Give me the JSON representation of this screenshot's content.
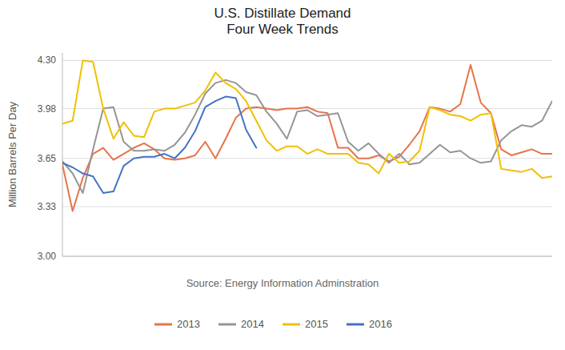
{
  "chart_data": {
    "type": "line",
    "title": "U.S. Distillate Demand\nFour Week Trends",
    "y_label": "Million Barrels Per Day",
    "annotations": [
      "Source: Energy Information Adminstration"
    ],
    "categories": [
      null,
      null,
      null,
      null,
      null,
      null,
      null,
      null,
      null,
      null,
      null,
      null,
      null,
      null,
      null,
      null,
      null,
      null,
      null,
      null,
      null,
      null,
      null,
      null,
      null,
      null,
      null,
      null,
      null,
      null,
      null,
      null,
      null,
      null,
      null,
      null,
      null,
      null,
      null,
      null,
      null,
      null,
      null,
      null,
      null,
      null,
      null,
      null,
      null
    ],
    "series": [
      {
        "name": "2013",
        "color": "#E8734A",
        "values": [
          3.61,
          3.3,
          3.52,
          3.68,
          3.72,
          3.64,
          3.68,
          3.72,
          3.75,
          3.71,
          3.65,
          3.64,
          3.65,
          3.67,
          3.76,
          3.65,
          3.78,
          3.92,
          3.98,
          3.99,
          3.98,
          3.97,
          3.98,
          3.98,
          3.99,
          3.96,
          3.95,
          3.72,
          3.72,
          3.65,
          3.65,
          3.67,
          3.63,
          3.66,
          3.74,
          3.83,
          3.99,
          3.98,
          3.96,
          4.01,
          4.27,
          4.02,
          3.95,
          3.71,
          3.67,
          3.69,
          3.71,
          3.68,
          3.68
        ]
      },
      {
        "name": "2014",
        "color": "#959595",
        "values": [
          3.63,
          3.55,
          3.42,
          3.71,
          3.98,
          3.99,
          3.76,
          3.7,
          3.7,
          3.71,
          3.7,
          3.74,
          3.82,
          3.94,
          4.08,
          4.15,
          4.17,
          4.15,
          4.09,
          4.07,
          3.96,
          3.88,
          3.78,
          3.96,
          3.97,
          3.93,
          3.94,
          3.95,
          3.76,
          3.7,
          3.75,
          3.68,
          3.62,
          3.68,
          3.61,
          3.62,
          3.68,
          3.74,
          3.69,
          3.7,
          3.65,
          3.62,
          3.63,
          3.77,
          3.83,
          3.87,
          3.86,
          3.9,
          4.03
        ]
      },
      {
        "name": "2015",
        "color": "#F0C000",
        "values": [
          3.88,
          3.9,
          4.3,
          4.29,
          3.98,
          3.78,
          3.89,
          3.8,
          3.79,
          3.96,
          3.98,
          3.98,
          4.0,
          4.02,
          4.1,
          4.22,
          4.15,
          4.11,
          4.03,
          3.9,
          3.77,
          3.7,
          3.73,
          3.73,
          3.68,
          3.71,
          3.68,
          3.68,
          3.68,
          3.62,
          3.61,
          3.55,
          3.68,
          3.62,
          3.63,
          3.7,
          3.99,
          3.97,
          3.94,
          3.93,
          3.9,
          3.94,
          3.95,
          3.58,
          3.57,
          3.56,
          3.58,
          3.52,
          3.53
        ]
      },
      {
        "name": "2016",
        "color": "#4472C4",
        "values": [
          3.62,
          3.59,
          3.55,
          3.53,
          3.42,
          3.43,
          3.6,
          3.65,
          3.66,
          3.66,
          3.68,
          3.65,
          3.72,
          3.83,
          3.99,
          4.03,
          4.06,
          4.05,
          3.84,
          3.72,
          null,
          null,
          null,
          null,
          null,
          null,
          null,
          null,
          null,
          null,
          null,
          null,
          null,
          null,
          null,
          null,
          null,
          null,
          null,
          null,
          null,
          null,
          null,
          null,
          null,
          null,
          null,
          null,
          null
        ]
      }
    ],
    "ylim": [
      3.0,
      4.35
    ],
    "yticks": [
      {
        "value": 3.0,
        "label": "3.00"
      },
      3.33,
      3.65,
      3.98,
      {
        "value": 4.3,
        "label": "4.30"
      }
    ],
    "grid": true,
    "legend": "bottom",
    "tick_labels": "y"
  }
}
